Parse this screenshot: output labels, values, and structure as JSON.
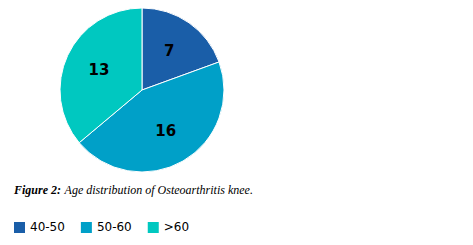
{
  "chart_data": {
    "type": "pie",
    "title": "Figure 2:",
    "subtitle": "Age distribution of Osteoarthritis knee.",
    "categories": [
      "40-50",
      "50-60",
      ">60"
    ],
    "values": [
      7,
      16,
      13
    ],
    "colors": [
      "#1a5ea8",
      "#00a0c8",
      "#00c8c0"
    ],
    "data_labels": true,
    "legend": "bottom"
  }
}
